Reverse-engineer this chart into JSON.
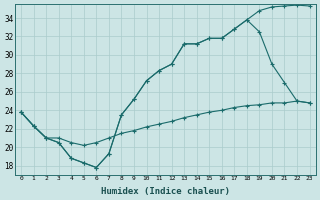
{
  "bg_color": "#cce5e5",
  "grid_color": "#aacccc",
  "line_color": "#1a6b6b",
  "xlabel": "Humidex (Indice chaleur)",
  "xlim": [
    -0.5,
    23.5
  ],
  "ylim": [
    17.0,
    35.5
  ],
  "yticks": [
    18,
    20,
    22,
    24,
    26,
    28,
    30,
    32,
    34
  ],
  "xticks": [
    0,
    1,
    2,
    3,
    4,
    5,
    6,
    7,
    8,
    9,
    10,
    11,
    12,
    13,
    14,
    15,
    16,
    17,
    18,
    19,
    20,
    21,
    22,
    23
  ],
  "line1_x": [
    0,
    1,
    2,
    3,
    4,
    5,
    6,
    7,
    8,
    9,
    10,
    11,
    12,
    13,
    14,
    15,
    16,
    17,
    18,
    19,
    20,
    21,
    22,
    23
  ],
  "line1_y": [
    23.8,
    22.3,
    21.0,
    20.5,
    18.8,
    18.3,
    17.8,
    19.3,
    23.5,
    25.2,
    27.2,
    28.3,
    29.0,
    31.2,
    31.2,
    31.8,
    31.8,
    32.8,
    33.8,
    32.5,
    29.0,
    27.0,
    25.0,
    24.8
  ],
  "line2_x": [
    0,
    1,
    2,
    3,
    4,
    5,
    6,
    7,
    8,
    9,
    10,
    11,
    12,
    13,
    14,
    15,
    16,
    17,
    18,
    19,
    20,
    21,
    22,
    23
  ],
  "line2_y": [
    23.8,
    22.3,
    21.0,
    20.5,
    18.8,
    18.3,
    17.8,
    19.3,
    23.5,
    25.2,
    27.2,
    28.3,
    29.0,
    31.2,
    31.2,
    31.8,
    31.8,
    32.8,
    33.8,
    34.8,
    35.2,
    35.3,
    35.4,
    35.3
  ],
  "line3_x": [
    0,
    1,
    2,
    3,
    4,
    5,
    6,
    7,
    8,
    9,
    10,
    11,
    12,
    13,
    14,
    15,
    16,
    17,
    18,
    19,
    20,
    21,
    22,
    23
  ],
  "line3_y": [
    23.8,
    22.3,
    21.0,
    21.0,
    20.5,
    20.2,
    20.5,
    21.0,
    21.5,
    21.8,
    22.2,
    22.5,
    22.8,
    23.2,
    23.5,
    23.8,
    24.0,
    24.3,
    24.5,
    24.6,
    24.8,
    24.8,
    25.0,
    24.8
  ]
}
